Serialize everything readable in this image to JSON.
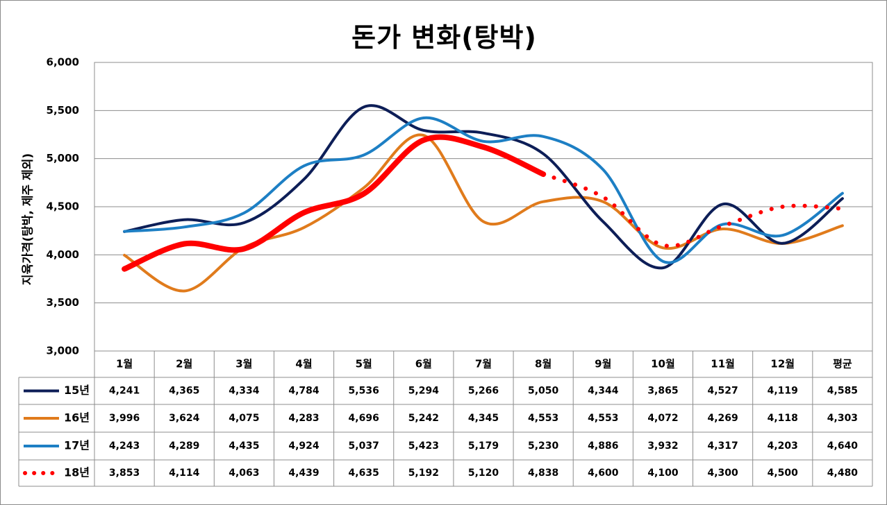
{
  "chart_data": {
    "type": "line",
    "title": "돈가 변화(탕박)",
    "ylabel": "지육가격(탕박, 제주 제외)",
    "xlabel": "",
    "ylim": [
      3000,
      6000
    ],
    "yticks": [
      3000,
      3500,
      4000,
      4500,
      5000,
      5500,
      6000
    ],
    "ytick_labels": [
      "3,000",
      "3,500",
      "4,000",
      "4,500",
      "5,000",
      "5,500",
      "6,000"
    ],
    "grid": "horizontal",
    "legend": "data-table-left",
    "categories": [
      "1월",
      "2월",
      "3월",
      "4월",
      "5월",
      "6월",
      "7월",
      "8월",
      "9월",
      "10월",
      "11월",
      "12월",
      "평균"
    ],
    "series": [
      {
        "name": "15년",
        "color": "#0d1e57",
        "style": "solid",
        "values": [
          4241,
          4365,
          4334,
          4784,
          5536,
          5294,
          5266,
          5050,
          4344,
          3865,
          4527,
          4119,
          4585
        ],
        "labels": [
          "4,241",
          "4,365",
          "4,334",
          "4,784",
          "5,536",
          "5,294",
          "5,266",
          "5,050",
          "4,344",
          "3,865",
          "4,527",
          "4,119",
          "4,585"
        ]
      },
      {
        "name": "16년",
        "color": "#e07b1c",
        "style": "solid",
        "values": [
          3996,
          3624,
          4075,
          4283,
          4696,
          5242,
          4345,
          4553,
          4553,
          4072,
          4269,
          4118,
          4303
        ],
        "labels": [
          "3,996",
          "3,624",
          "4,075",
          "4,283",
          "4,696",
          "5,242",
          "4,345",
          "4,553",
          "4,553",
          "4,072",
          "4,269",
          "4,118",
          "4,303"
        ]
      },
      {
        "name": "17년",
        "color": "#1d7fc4",
        "style": "solid",
        "values": [
          4243,
          4289,
          4435,
          4924,
          5037,
          5423,
          5179,
          5230,
          4886,
          3932,
          4317,
          4203,
          4640
        ],
        "labels": [
          "4,243",
          "4,289",
          "4,435",
          "4,924",
          "5,037",
          "5,423",
          "5,179",
          "5,230",
          "4,886",
          "3,932",
          "4,317",
          "4,203",
          "4,640"
        ]
      },
      {
        "name": "18년",
        "color": "#ff0000",
        "style": "thick-solid-then-dotted",
        "solid_until_index": 7,
        "values": [
          3853,
          4114,
          4063,
          4439,
          4635,
          5192,
          5120,
          4838,
          4600,
          4100,
          4300,
          4500,
          4480
        ],
        "labels": [
          "3,853",
          "4,114",
          "4,063",
          "4,439",
          "4,635",
          "5,192",
          "5,120",
          "4,838",
          "4,600",
          "4,100",
          "4,300",
          "4,500",
          "4,480"
        ]
      }
    ]
  }
}
